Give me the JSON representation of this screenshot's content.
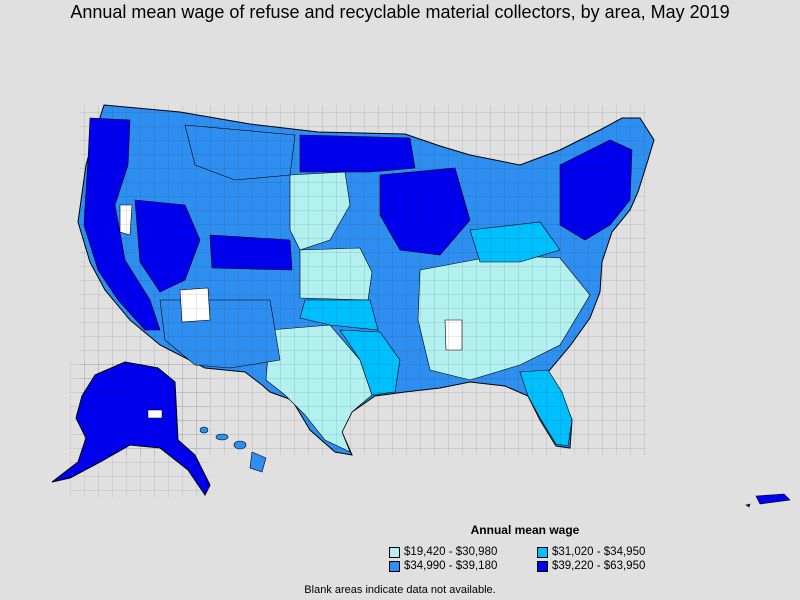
{
  "title": "Annual mean wage of refuse and recyclable material collectors, by area, May 2019",
  "legend": {
    "title": "Annual mean wage",
    "items": [
      {
        "label": "$19,420 - $30,980",
        "color": "#b3f0f0"
      },
      {
        "label": "$31,020 - $34,950",
        "color": "#00bfff"
      },
      {
        "label": "$34,990 - $39,180",
        "color": "#2e8ff0"
      },
      {
        "label": "$39,220 - $63,950",
        "color": "#0000ee"
      }
    ]
  },
  "footnote": "Blank areas indicate data not available.",
  "colors": {
    "background": "#e0e0e0",
    "no_data": "#ffffff",
    "border": "#000000"
  }
}
